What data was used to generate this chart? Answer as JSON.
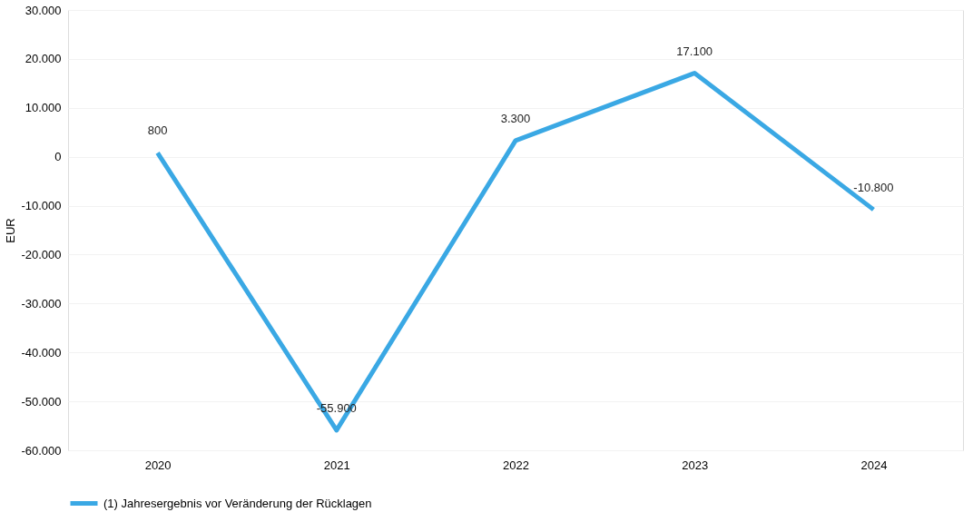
{
  "chart_data": {
    "type": "line",
    "ylabel": "EUR",
    "categories": [
      "2020",
      "2021",
      "2022",
      "2023",
      "2024"
    ],
    "series": [
      {
        "name": "(1) Jahresergebnis vor Veränderung der Rücklagen",
        "color": "#3aa8e4",
        "values": [
          800,
          -55900,
          3300,
          17100,
          -10800
        ],
        "value_labels": [
          "800",
          "-55.900",
          "3.300",
          "17.100",
          "-10.800"
        ]
      }
    ],
    "ylim": [
      -60000,
      30000
    ],
    "yticks": [
      {
        "value": -60000,
        "label": "-60.000"
      },
      {
        "value": -50000,
        "label": "-50.000"
      },
      {
        "value": -40000,
        "label": "-40.000"
      },
      {
        "value": -30000,
        "label": "-30.000"
      },
      {
        "value": -20000,
        "label": "-20.000"
      },
      {
        "value": -10000,
        "label": "-10.000"
      },
      0,
      {
        "value": 10000,
        "label": "10.000"
      },
      {
        "value": 20000,
        "label": "20.000"
      },
      {
        "value": 30000,
        "label": "30.000"
      }
    ],
    "grid": "y",
    "legend": "bottom",
    "marker": "none",
    "line_style": "solid"
  }
}
